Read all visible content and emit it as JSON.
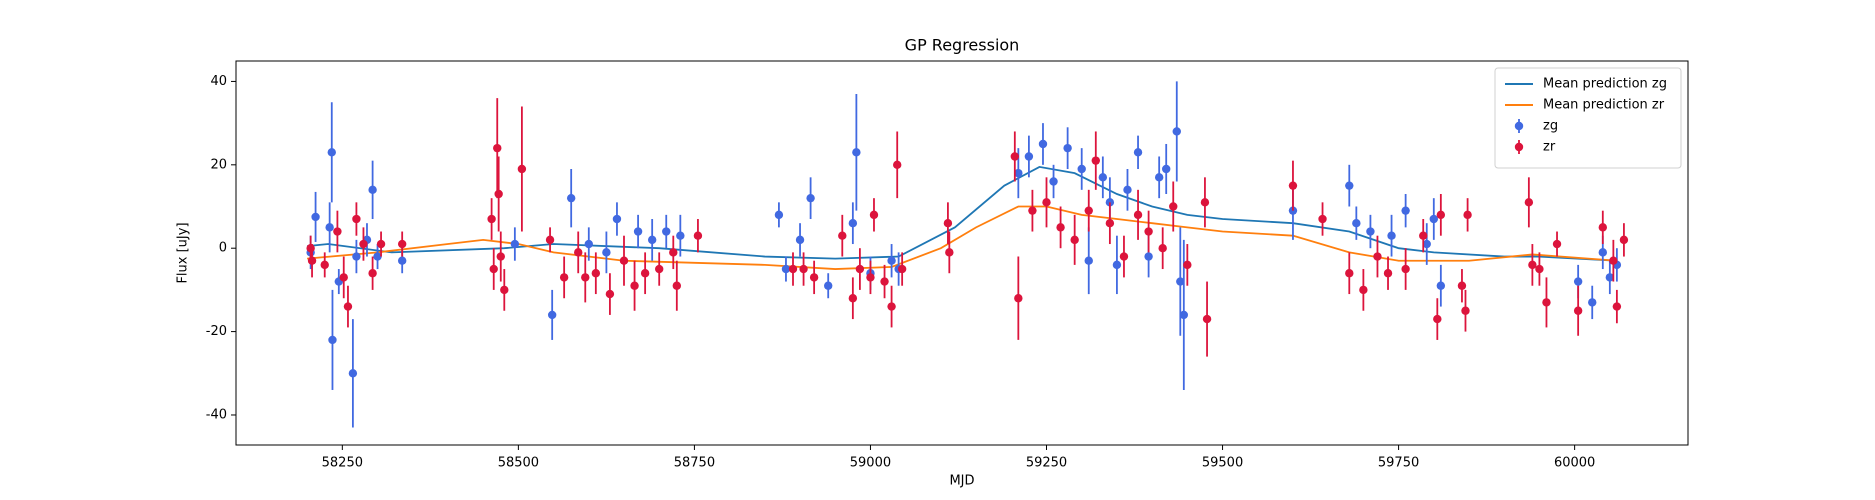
{
  "chart_data": {
    "type": "errorbar",
    "title": "GP Regression",
    "x_label": "MJD",
    "y_label": "Flux [uJy]",
    "xlim": [
      58099,
      60161
    ],
    "ylim": [
      -47.2,
      44.9
    ],
    "xticks": [
      58250,
      58500,
      58750,
      59000,
      59250,
      59500,
      59750,
      60000
    ],
    "yticks": [
      -40,
      -20,
      0,
      20,
      40
    ],
    "legend": "upper right",
    "series": [
      {
        "name": "Mean prediction zg",
        "kind": "line",
        "color": "#1f77b4",
        "x": [
          58200,
          58230,
          58320,
          58480,
          58550,
          58700,
          58850,
          58950,
          59040,
          59120,
          59190,
          59240,
          59290,
          59350,
          59400,
          59450,
          59500,
          59600,
          59680,
          59750,
          59800,
          59900,
          59950,
          60060
        ],
        "values": [
          0.5,
          1,
          -1,
          0,
          1,
          0,
          -2,
          -2.5,
          -2,
          5,
          15,
          19.5,
          18,
          13,
          10,
          8,
          7,
          6,
          4,
          0,
          -1,
          -2,
          -2,
          -3
        ]
      },
      {
        "name": "Mean prediction zr",
        "kind": "line",
        "color": "#ff7f0e",
        "x": [
          58200,
          58300,
          58400,
          58450,
          58500,
          58550,
          58650,
          58750,
          58850,
          58950,
          59030,
          59100,
          59150,
          59210,
          59250,
          59300,
          59350,
          59400,
          59450,
          59500,
          59600,
          59680,
          59750,
          59850,
          59940,
          60060
        ],
        "values": [
          -2.5,
          -1,
          1,
          2,
          1,
          -1,
          -3,
          -3.5,
          -4,
          -5,
          -4.5,
          0,
          5,
          10,
          10,
          8,
          7,
          6,
          5,
          4,
          3,
          -1,
          -3,
          -3,
          -1.5,
          -3
        ]
      },
      {
        "name": "zg",
        "kind": "errorbar",
        "color": "#4169e1",
        "x": [
          58205,
          58212,
          58232,
          58235,
          58236,
          58245,
          58265,
          58270,
          58285,
          58293,
          58300,
          58335,
          58495,
          58548,
          58575,
          58600,
          58625,
          58640,
          58670,
          58690,
          58710,
          58730,
          58870,
          58880,
          58900,
          58915,
          58940,
          58975,
          58980,
          59000,
          59030,
          59040,
          59210,
          59225,
          59245,
          59260,
          59280,
          59300,
          59310,
          59330,
          59340,
          59350,
          59365,
          59380,
          59395,
          59410,
          59420,
          59435,
          59440,
          59445,
          59600,
          59680,
          59690,
          59710,
          59740,
          59760,
          59790,
          59800,
          59810,
          60005,
          60025,
          60040,
          60050,
          60060
        ],
        "values": [
          -1,
          7.5,
          5,
          23,
          -22,
          -8,
          -30,
          -2,
          2,
          14,
          -2,
          -3,
          1,
          -16,
          12,
          1,
          -1,
          7,
          4,
          2,
          4,
          3,
          8,
          -5,
          2,
          12,
          -9,
          6,
          23,
          -6,
          -3,
          -5,
          18,
          22,
          25,
          16,
          24,
          19,
          -3,
          17,
          11,
          -4,
          14,
          23,
          -2,
          17,
          19,
          28,
          -8,
          -16,
          9,
          15,
          6,
          4,
          3,
          9,
          1,
          7,
          -9,
          -8,
          -13,
          -1,
          -7,
          -4
        ],
        "errors": [
          4,
          6,
          6,
          12,
          12,
          3,
          13,
          4,
          4,
          7,
          3,
          3,
          4,
          6,
          7,
          4,
          5,
          4,
          4,
          5,
          4,
          5,
          3,
          3,
          4,
          5,
          3,
          5,
          14,
          4,
          4,
          4,
          6,
          5,
          5,
          4,
          5,
          5,
          8,
          5,
          6,
          7,
          5,
          4,
          5,
          5,
          6,
          12,
          13,
          18,
          7,
          5,
          4,
          4,
          5,
          4,
          5,
          5,
          5,
          4,
          4,
          4,
          4,
          4
        ]
      },
      {
        "name": "zr",
        "kind": "errorbar",
        "color": "#dc143c",
        "x": [
          58205,
          58207,
          58225,
          58243,
          58252,
          58258,
          58270,
          58280,
          58293,
          58305,
          58335,
          58462,
          58465,
          58470,
          58472,
          58475,
          58480,
          58505,
          58545,
          58565,
          58585,
          58595,
          58610,
          58630,
          58650,
          58665,
          58680,
          58700,
          58720,
          58725,
          58755,
          58890,
          58905,
          58920,
          58960,
          58975,
          58985,
          59000,
          59005,
          59020,
          59030,
          59038,
          59045,
          59110,
          59112,
          59205,
          59210,
          59230,
          59250,
          59270,
          59290,
          59310,
          59320,
          59340,
          59360,
          59380,
          59395,
          59415,
          59430,
          59450,
          59475,
          59478,
          59600,
          59642,
          59680,
          59700,
          59720,
          59735,
          59760,
          59785,
          59805,
          59810,
          59840,
          59845,
          59848,
          59935,
          59940,
          59950,
          59960,
          59975,
          60005,
          60040,
          60055,
          60060,
          60070
        ],
        "values": [
          0,
          -3,
          -4,
          4,
          -7,
          -14,
          7,
          1,
          -6,
          1,
          1,
          7,
          -5,
          24,
          13,
          -2,
          -10,
          19,
          2,
          -7,
          -1,
          -7,
          -6,
          -11,
          -3,
          -9,
          -6,
          -5,
          -1,
          -9,
          3,
          -5,
          -5,
          -7,
          3,
          -12,
          -5,
          -7,
          8,
          -8,
          -14,
          20,
          -5,
          6,
          -1,
          22,
          -12,
          9,
          11,
          5,
          2,
          9,
          21,
          6,
          -2,
          8,
          4,
          0,
          10,
          -4,
          11,
          -17,
          15,
          7,
          -6,
          -10,
          -2,
          -6,
          -5,
          3,
          -17,
          8,
          -9,
          -15,
          8,
          11,
          -4,
          -5,
          -13,
          1,
          -15,
          5,
          -3,
          -14,
          2
        ],
        "errors": [
          3,
          4,
          3,
          5,
          5,
          5,
          4,
          4,
          4,
          3,
          3,
          5,
          5,
          12,
          9,
          6,
          5,
          15,
          3,
          5,
          5,
          6,
          5,
          5,
          6,
          6,
          5,
          4,
          4,
          6,
          4,
          4,
          4,
          4,
          5,
          5,
          5,
          4,
          4,
          4,
          5,
          8,
          4,
          5,
          5,
          6,
          10,
          5,
          6,
          5,
          6,
          5,
          7,
          5,
          5,
          6,
          5,
          5,
          6,
          5,
          6,
          9,
          6,
          4,
          5,
          5,
          5,
          4,
          5,
          4,
          5,
          5,
          4,
          5,
          4,
          6,
          5,
          4,
          6,
          3,
          6,
          4,
          5,
          4,
          4
        ]
      }
    ]
  }
}
